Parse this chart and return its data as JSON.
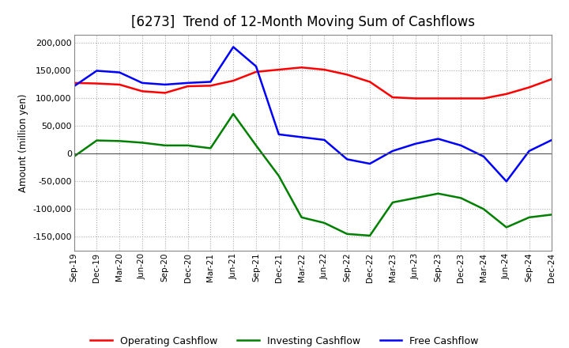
{
  "title": "[6273]  Trend of 12-Month Moving Sum of Cashflows",
  "ylabel": "Amount (million yen)",
  "xlabels": [
    "Sep-19",
    "Dec-19",
    "Mar-20",
    "Jun-20",
    "Sep-20",
    "Dec-20",
    "Mar-21",
    "Jun-21",
    "Sep-21",
    "Dec-21",
    "Mar-22",
    "Jun-22",
    "Sep-22",
    "Dec-22",
    "Mar-23",
    "Jun-23",
    "Sep-23",
    "Dec-23",
    "Mar-24",
    "Jun-24",
    "Sep-24",
    "Dec-24"
  ],
  "operating": [
    128000,
    127000,
    125000,
    113000,
    110000,
    122000,
    123000,
    132000,
    148000,
    152000,
    156000,
    152000,
    143000,
    130000,
    102000,
    100000,
    100000,
    100000,
    100000,
    108000,
    120000,
    135000
  ],
  "investing": [
    -5000,
    24000,
    23000,
    20000,
    15000,
    15000,
    10000,
    72000,
    15000,
    -40000,
    -115000,
    -125000,
    -145000,
    -148000,
    -88000,
    -80000,
    -72000,
    -80000,
    -100000,
    -133000,
    -115000,
    -110000
  ],
  "free": [
    122000,
    150000,
    147000,
    128000,
    125000,
    128000,
    130000,
    193000,
    158000,
    35000,
    30000,
    25000,
    -10000,
    -18000,
    5000,
    18000,
    27000,
    15000,
    -5000,
    -50000,
    5000,
    25000
  ],
  "ylim": [
    -175000,
    215000
  ],
  "yticks": [
    -150000,
    -100000,
    -50000,
    0,
    50000,
    100000,
    150000,
    200000
  ],
  "operating_color": "#ff0000",
  "investing_color": "#008000",
  "free_color": "#0000ff",
  "bg_color": "#ffffff",
  "grid_color": "#aaaaaa",
  "title_fontsize": 12,
  "legend_labels": [
    "Operating Cashflow",
    "Investing Cashflow",
    "Free Cashflow"
  ]
}
